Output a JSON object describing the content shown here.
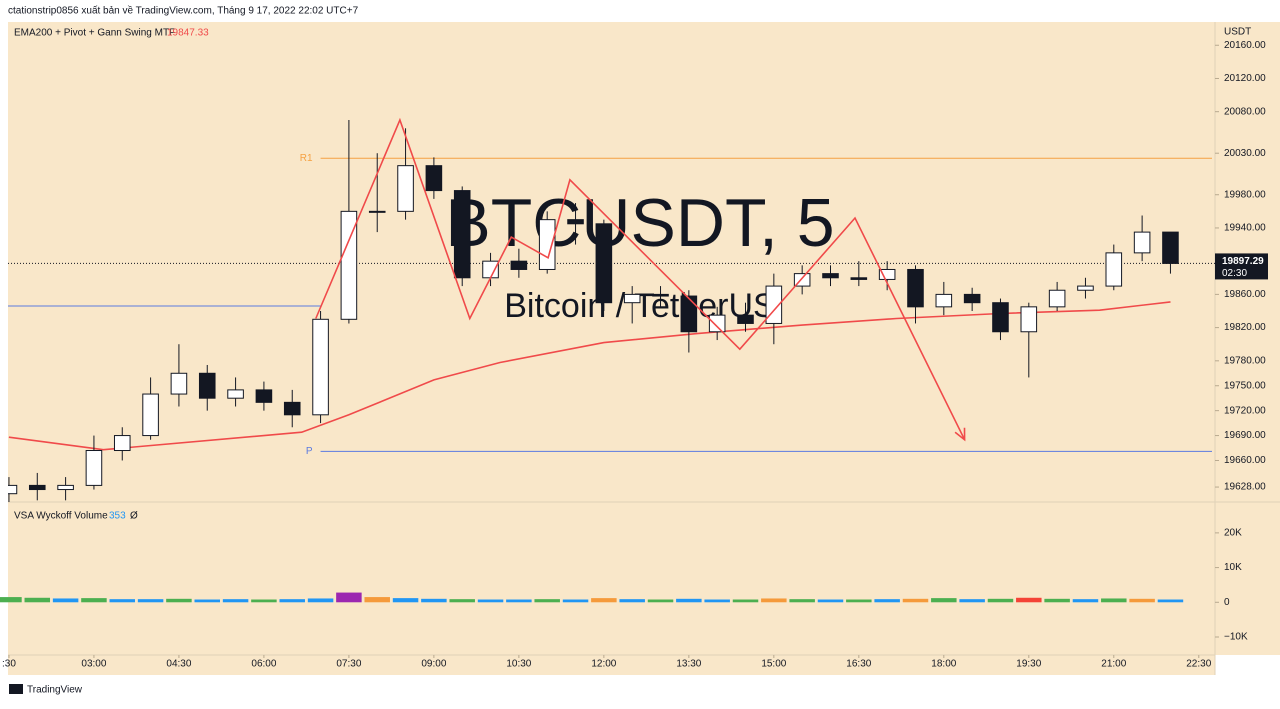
{
  "header": "ctationstrip0856 xuất bản về TradingView.com, Tháng 9 17, 2022 22:02 UTC+7",
  "footer": "TradingView",
  "chart_data": [
    {
      "type": "candlestick",
      "indicator_title": "EMA200 + Pivot + Gann Swing MTF",
      "indicator_value": 19847.33,
      "watermark": "BTCUSDT, 5",
      "watermark_subtitle": "Bitcoin / TetherUS",
      "axis_unit": "USDT",
      "x": [
        90,
        120,
        150,
        180,
        210,
        240,
        270,
        300,
        330,
        360,
        390,
        420,
        450,
        480,
        510,
        540,
        570,
        600,
        630,
        660,
        690,
        720,
        750,
        780,
        810,
        840,
        870,
        900,
        930,
        960,
        990,
        1020,
        1050,
        1080,
        1110,
        1140,
        1170,
        1200,
        1230,
        1260,
        1290,
        1320
      ],
      "open": [
        19620,
        19630,
        19625,
        19630,
        19672,
        19690,
        19740,
        19765,
        19735,
        19745,
        19730,
        19715,
        19830,
        19960,
        19960,
        20015,
        19985,
        19880,
        19900,
        19890,
        19950,
        19945,
        19850,
        19860,
        19858,
        19815,
        19835,
        19825,
        19870,
        19885,
        19880,
        19878,
        19890,
        19845,
        19860,
        19850,
        19815,
        19845,
        19865,
        19870,
        19910,
        19935
      ],
      "high": [
        19640,
        19645,
        19640,
        19690,
        19700,
        19760,
        19800,
        19775,
        19760,
        19755,
        19745,
        19840,
        20070,
        20030,
        20060,
        20025,
        19990,
        19910,
        19915,
        19960,
        19970,
        19950,
        19870,
        19870,
        19865,
        19845,
        19850,
        19885,
        19895,
        19895,
        19900,
        19900,
        19895,
        19875,
        19868,
        19855,
        19850,
        19875,
        19880,
        19920,
        19955,
        19935
      ],
      "low": [
        19610,
        19612,
        19612,
        19625,
        19660,
        19685,
        19725,
        19720,
        19725,
        19720,
        19700,
        19705,
        19825,
        19935,
        19950,
        19975,
        19870,
        19870,
        19880,
        19885,
        19920,
        19840,
        19825,
        19845,
        19790,
        19805,
        19815,
        19800,
        19860,
        19870,
        19870,
        19865,
        19825,
        19835,
        19840,
        19805,
        19760,
        19840,
        19855,
        19865,
        19900,
        19885
      ],
      "close": [
        19630,
        19625,
        19630,
        19672,
        19690,
        19740,
        19765,
        19735,
        19745,
        19730,
        19715,
        19830,
        19960,
        19960,
        20015,
        19985,
        19880,
        19900,
        19890,
        19950,
        19945,
        19850,
        19860,
        19858,
        19815,
        19835,
        19825,
        19870,
        19885,
        19880,
        19878,
        19890,
        19845,
        19860,
        19850,
        19815,
        19845,
        19865,
        19870,
        19910,
        19935,
        19897.29
      ],
      "colors": {
        "up": "#ffffff",
        "down": "#131722",
        "outline": "#131722"
      },
      "ema": {
        "color": "#f04a4a",
        "x": [
          90,
          190,
          400,
          450,
          540,
          610,
          720,
          820,
          930,
          1030,
          1140,
          1245,
          1320
        ],
        "values": [
          19688,
          19673,
          19694,
          19715,
          19757,
          19778,
          19802,
          19813,
          19823,
          19831,
          19837,
          19841,
          19851
        ]
      },
      "swing": {
        "color": "#f04a4a",
        "x": [
          415,
          504,
          578,
          622,
          661,
          684,
          864,
          986,
          1102
        ],
        "values": [
          19831,
          20070,
          19831,
          19929,
          19904,
          19998,
          19794,
          19952,
          19685
        ]
      },
      "levels": [
        {
          "label": "R1",
          "value": 20024,
          "color": "#f5a142",
          "x": [
            420,
            1364
          ]
        },
        {
          "label": "P",
          "value": 19671,
          "color": "#5b7be0",
          "x": [
            420,
            1364
          ]
        },
        {
          "value": 19846,
          "color": "#5b7be0",
          "x": [
            89,
            420
          ]
        }
      ],
      "last_price": 19897.29,
      "countdown": "02:30",
      "xlim": [
        89,
        1364
      ],
      "ylim": [
        19610,
        20188
      ],
      "yticks": [
        {
          "value": 20160,
          "label": "20160.00"
        },
        {
          "value": 20120,
          "label": "20120.00"
        },
        {
          "value": 20080,
          "label": "20080.00"
        },
        {
          "value": 20030,
          "label": "20030.00"
        },
        {
          "value": 19980,
          "label": "19980.00"
        },
        {
          "value": 19940,
          "label": "19940.00"
        },
        {
          "value": 19860,
          "label": "19860.00"
        },
        {
          "value": 19820,
          "label": "19820.00"
        },
        {
          "value": 19780,
          "label": "19780.00"
        },
        {
          "value": 19750,
          "label": "19750.00"
        },
        {
          "value": 19720,
          "label": "19720.00"
        },
        {
          "value": 19690,
          "label": "19690.00"
        },
        {
          "value": 19660,
          "label": "19660.00"
        },
        {
          "value": 19628,
          "label": "19628.00"
        }
      ],
      "xticks": [
        {
          "value": 90,
          "label": ":30"
        },
        {
          "value": 180,
          "label": "03:00"
        },
        {
          "value": 270,
          "label": "04:30"
        },
        {
          "value": 360,
          "label": "06:00"
        },
        {
          "value": 450,
          "label": "07:30"
        },
        {
          "value": 540,
          "label": "09:00"
        },
        {
          "value": 630,
          "label": "10:30"
        },
        {
          "value": 720,
          "label": "12:00"
        },
        {
          "value": 810,
          "label": "13:30"
        },
        {
          "value": 900,
          "label": "15:00"
        },
        {
          "value": 990,
          "label": "16:30"
        },
        {
          "value": 1080,
          "label": "18:00"
        },
        {
          "value": 1170,
          "label": "19:30"
        },
        {
          "value": 1260,
          "label": "21:00"
        },
        {
          "value": 1350,
          "label": "22:30"
        }
      ]
    },
    {
      "type": "bar",
      "title": "VSA Wyckoff Volume",
      "title_value": 353,
      "title_symbol": "Ø",
      "x": [
        90,
        120,
        150,
        180,
        210,
        240,
        270,
        300,
        330,
        360,
        390,
        420,
        450,
        480,
        510,
        540,
        570,
        600,
        630,
        660,
        690,
        720,
        750,
        780,
        810,
        840,
        870,
        900,
        930,
        960,
        990,
        1020,
        1050,
        1080,
        1110,
        1140,
        1170,
        1200,
        1230,
        1260,
        1290,
        1320
      ],
      "values": [
        1500,
        1300,
        1100,
        1200,
        900,
        900,
        1000,
        800,
        900,
        800,
        900,
        1100,
        2800,
        1500,
        1200,
        1000,
        900,
        800,
        800,
        900,
        800,
        1200,
        900,
        800,
        1000,
        800,
        800,
        1100,
        900,
        800,
        800,
        900,
        1000,
        1200,
        900,
        1000,
        1300,
        1000,
        900,
        1100,
        1000,
        800
      ],
      "colors": [
        "#4caf50",
        "#4caf50",
        "#2196f3",
        "#4caf50",
        "#2196f3",
        "#2196f3",
        "#4caf50",
        "#2196f3",
        "#2196f3",
        "#4caf50",
        "#2196f3",
        "#2196f3",
        "#9c27b0",
        "#f59a3b",
        "#2196f3",
        "#2196f3",
        "#4caf50",
        "#2196f3",
        "#2196f3",
        "#4caf50",
        "#2196f3",
        "#f59a3b",
        "#2196f3",
        "#4caf50",
        "#2196f3",
        "#2196f3",
        "#4caf50",
        "#f59a3b",
        "#4caf50",
        "#2196f3",
        "#4caf50",
        "#2196f3",
        "#f59a3b",
        "#4caf50",
        "#2196f3",
        "#4caf50",
        "#f44336",
        "#4caf50",
        "#2196f3",
        "#4caf50",
        "#f59a3b",
        "#2196f3"
      ],
      "ylim": [
        -15190,
        28900
      ],
      "yticks": [
        {
          "value": 20000,
          "label": "20K"
        },
        {
          "value": 10000,
          "label": "10K"
        },
        0,
        {
          "value": -10000,
          "label": "−10K"
        }
      ]
    }
  ]
}
